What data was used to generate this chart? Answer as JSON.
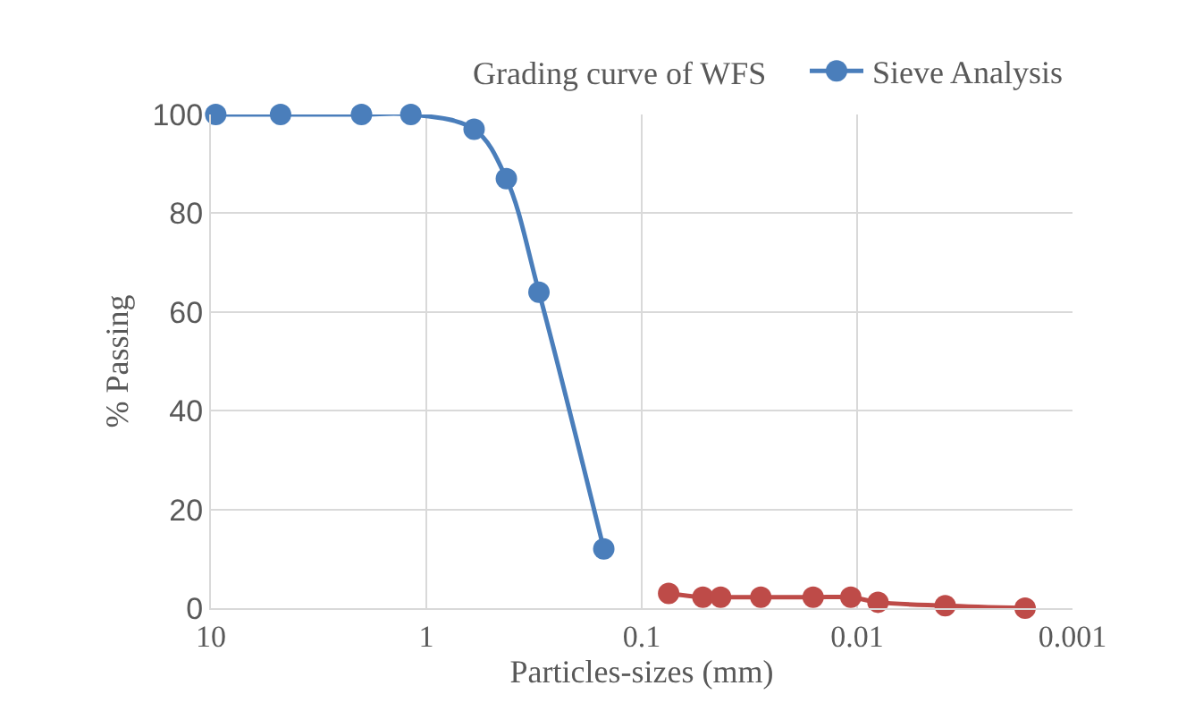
{
  "chart_data": {
    "type": "line",
    "title": "Grading curve of WFS",
    "xlabel": "Particles-sizes (mm)",
    "ylabel": "% Passing",
    "log": "x",
    "xlim": [
      10,
      0.001
    ],
    "xticks": [
      10,
      1,
      0.1,
      0.01,
      0.001
    ],
    "ylim": [
      0,
      100
    ],
    "yticks": [
      0,
      20,
      40,
      60,
      80,
      100
    ],
    "grid": true,
    "legend": "top right",
    "marker": "circle",
    "line_style": "solid",
    "series": [
      {
        "name": "Sieve Analysis",
        "color": "#4a7ebb",
        "x": [
          9.5,
          4.75,
          2,
          1.18,
          0.6,
          0.425,
          0.3,
          0.15
        ],
        "values": [
          100,
          100,
          100,
          100,
          97,
          87,
          64,
          12
        ]
      },
      {
        "color": "#be4b48",
        "x": [
          0.075,
          0.052,
          0.043,
          0.028,
          0.016,
          0.0107,
          0.008,
          0.0039,
          0.00166
        ],
        "values": [
          3,
          2.2,
          2.2,
          2.2,
          2.2,
          2.2,
          1.2,
          0.5,
          0
        ]
      }
    ]
  }
}
